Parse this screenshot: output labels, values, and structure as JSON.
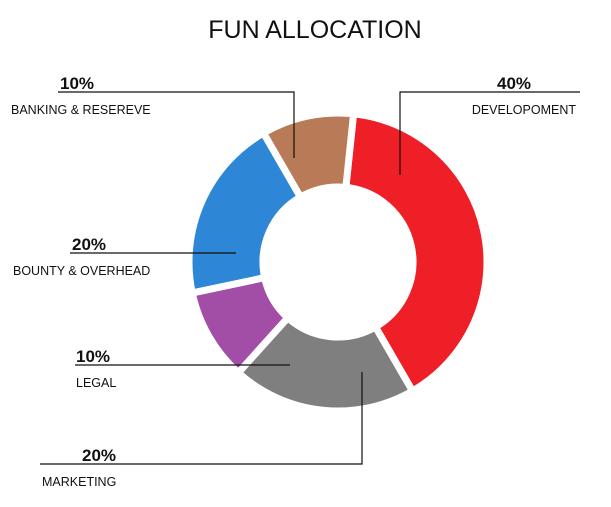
{
  "chart_data": {
    "type": "pie",
    "title": "FUN ALLOCATION",
    "style": "donut",
    "slices": [
      {
        "label": "DEVELOPOMENT",
        "value": 40,
        "value_label": "40%",
        "color": "#ee1f26"
      },
      {
        "label": "MARKETING",
        "value": 20,
        "value_label": "20%",
        "color": "#7f7f7f"
      },
      {
        "label": "LEGAL",
        "value": 10,
        "value_label": "10%",
        "color": "#a24ea6"
      },
      {
        "label": "BOUNTY & OVERHEAD",
        "value": 20,
        "value_label": "20%",
        "color": "#2e86d6"
      },
      {
        "label": "BANKING & RESEREVE",
        "value": 10,
        "value_label": "10%",
        "color": "#b97a57"
      }
    ]
  }
}
